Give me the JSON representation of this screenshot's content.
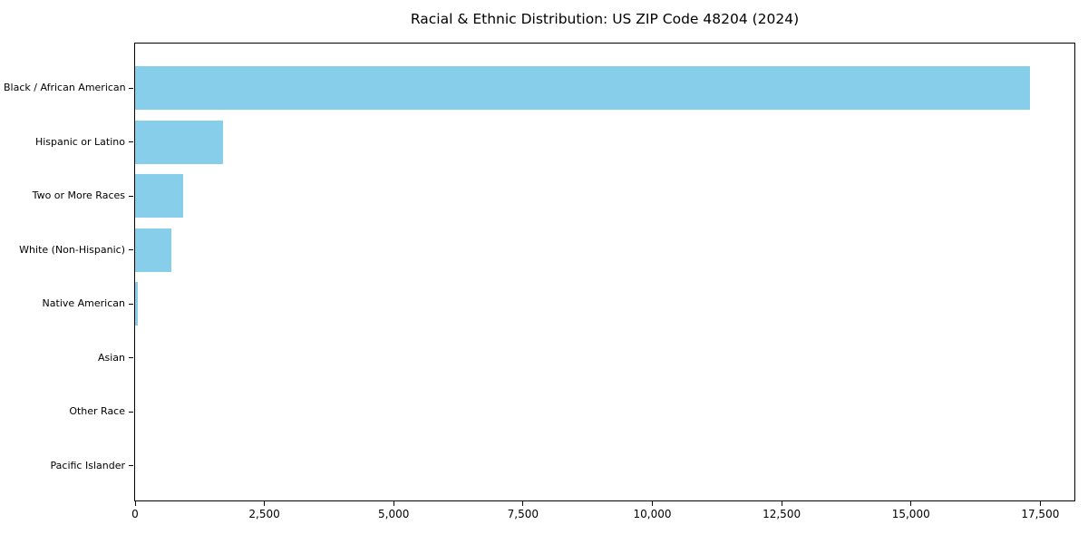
{
  "title": "Racial & Ethnic Distribution: US ZIP Code 48204 (2024)",
  "chart_data": {
    "type": "bar",
    "orientation": "horizontal",
    "title": "Racial & Ethnic Distribution: US ZIP Code 48204 (2024)",
    "categories": [
      "Black / African American",
      "Hispanic or Latino",
      "Two or More Races",
      "White (Non-Hispanic)",
      "Native American",
      "Asian",
      "Other Race",
      "Pacific Islander"
    ],
    "values": [
      17300,
      1700,
      930,
      700,
      50,
      0,
      0,
      0
    ],
    "xlabel": "",
    "ylabel": "",
    "xlim": [
      0,
      18160
    ],
    "xticks": [
      0,
      2500,
      5000,
      7500,
      10000,
      12500,
      15000,
      17500
    ],
    "xtick_labels": [
      "0",
      "2,500",
      "5,000",
      "7,500",
      "10,000",
      "12,500",
      "15,000",
      "17,500"
    ],
    "bar_color": "#87CEEB",
    "frame_color": "#000000",
    "grid": false,
    "legend": null
  }
}
